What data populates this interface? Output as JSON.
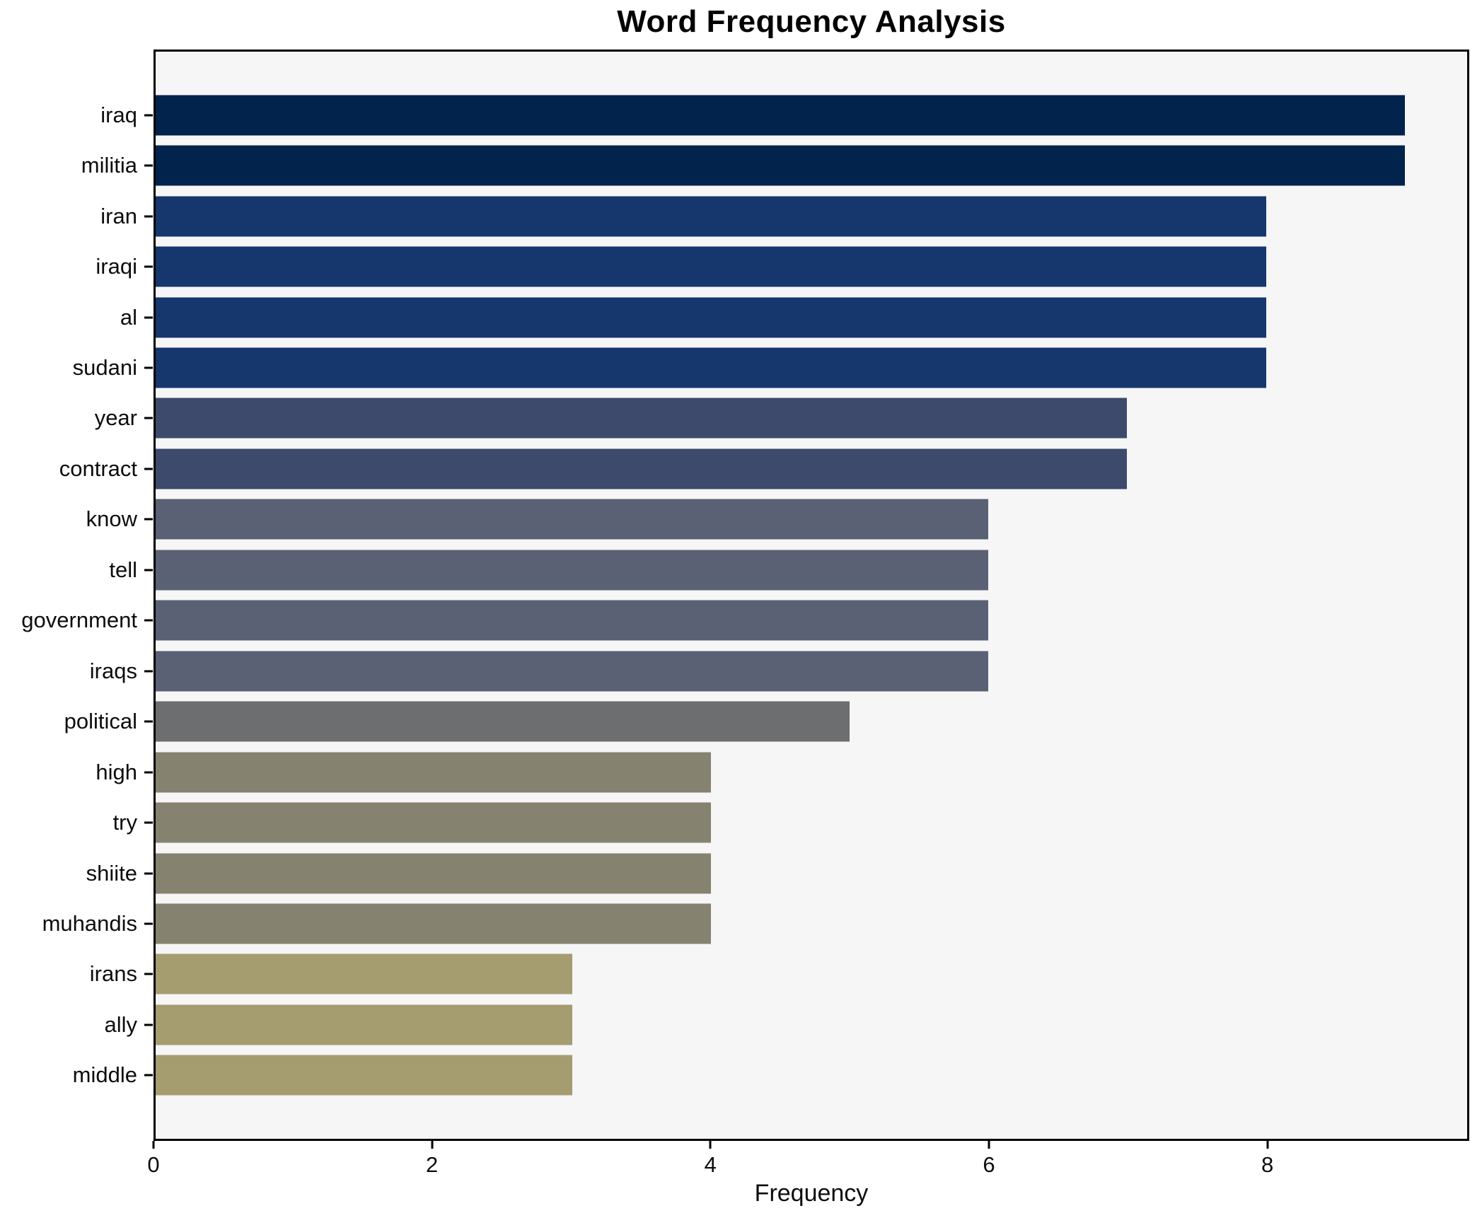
{
  "title": "Word Frequency Analysis",
  "xlabel": "Frequency",
  "colors": {
    "figure_bg": "#ffffff",
    "plot_bg": "#f6f6f7",
    "spine": "#000000",
    "value_9": "#02234c",
    "value_8": "#16376d",
    "value_7": "#3d4a6c",
    "value_6": "#5b6175",
    "value_5": "#6d6e70",
    "value_4": "#85836f",
    "value_3": "#a59d70"
  },
  "chart_data": {
    "type": "bar",
    "orientation": "horizontal",
    "title": "Word Frequency Analysis",
    "xlabel": "Frequency",
    "ylabel": "",
    "categories": [
      "iraq",
      "militia",
      "iran",
      "iraqi",
      "al",
      "sudani",
      "year",
      "contract",
      "know",
      "tell",
      "government",
      "iraqs",
      "political",
      "high",
      "try",
      "shiite",
      "muhandis",
      "irans",
      "ally",
      "middle"
    ],
    "values": [
      9,
      9,
      8,
      8,
      8,
      8,
      7,
      7,
      6,
      6,
      6,
      6,
      5,
      4,
      4,
      4,
      4,
      3,
      3,
      3
    ],
    "bar_colors": [
      "#02234c",
      "#02234c",
      "#16376d",
      "#16376d",
      "#16376d",
      "#16376d",
      "#3d4a6c",
      "#3d4a6c",
      "#5b6175",
      "#5b6175",
      "#5b6175",
      "#5b6175",
      "#6d6e70",
      "#85836f",
      "#85836f",
      "#85836f",
      "#85836f",
      "#a59d70",
      "#a59d70",
      "#a59d70"
    ],
    "xlim": [
      0,
      9.45
    ],
    "x_ticks": [
      0,
      2,
      4,
      6,
      8
    ],
    "grid": false,
    "legend": null
  }
}
